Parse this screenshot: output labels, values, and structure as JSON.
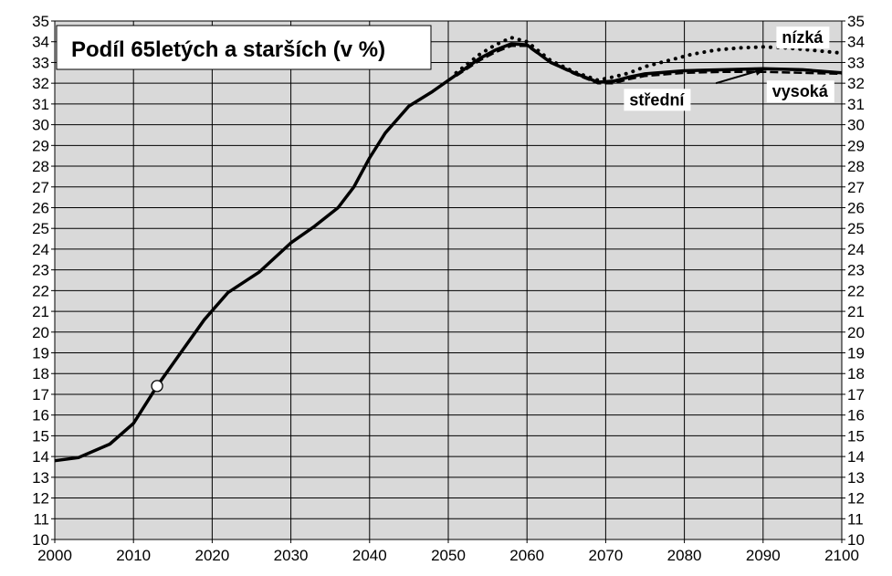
{
  "chart_data": {
    "type": "line",
    "title": "Podíl 65letých a starších (v %)",
    "xlabel": "",
    "ylabel": "",
    "xlim": [
      2000,
      2100
    ],
    "ylim": [
      10,
      35
    ],
    "x_ticks": [
      2000,
      2010,
      2020,
      2030,
      2040,
      2050,
      2060,
      2070,
      2080,
      2090,
      2100
    ],
    "y_ticks": [
      10,
      11,
      12,
      13,
      14,
      15,
      16,
      17,
      18,
      19,
      20,
      21,
      22,
      23,
      24,
      25,
      26,
      27,
      28,
      29,
      30,
      31,
      32,
      33,
      34,
      35
    ],
    "grid": true,
    "plot_background": "#d9d9d9",
    "line_color": "#000000",
    "series": [
      {
        "name": "střední",
        "style": "solid",
        "x": [
          2000,
          2003,
          2007,
          2010,
          2013,
          2016,
          2019,
          2022,
          2026,
          2030,
          2033,
          2036,
          2038,
          2040,
          2042,
          2045,
          2048,
          2051,
          2054,
          2056,
          2058,
          2060,
          2063,
          2066,
          2069,
          2071,
          2073,
          2075,
          2080,
          2085,
          2090,
          2095,
          2100
        ],
        "y": [
          13.8,
          13.95,
          14.6,
          15.6,
          17.4,
          19.0,
          20.6,
          21.9,
          22.9,
          24.3,
          25.1,
          26.0,
          27.0,
          28.4,
          29.6,
          30.9,
          31.6,
          32.4,
          33.2,
          33.6,
          33.9,
          33.85,
          33.0,
          32.5,
          32.05,
          32.1,
          32.3,
          32.45,
          32.6,
          32.65,
          32.7,
          32.65,
          32.5
        ]
      },
      {
        "name": "nízká",
        "style": "dotted",
        "x": [
          2051,
          2054,
          2056,
          2058,
          2060,
          2063,
          2066,
          2069,
          2071,
          2073,
          2075,
          2078,
          2081,
          2084,
          2087,
          2090,
          2093,
          2096,
          2100
        ],
        "y": [
          32.5,
          33.4,
          33.85,
          34.2,
          34.0,
          33.1,
          32.55,
          32.15,
          32.3,
          32.5,
          32.8,
          33.1,
          33.4,
          33.6,
          33.7,
          33.75,
          33.7,
          33.6,
          33.45
        ]
      },
      {
        "name": "vysoká",
        "style": "dashed",
        "x": [
          2051,
          2054,
          2056,
          2058,
          2060,
          2063,
          2066,
          2069,
          2071,
          2073,
          2075,
          2080,
          2085,
          2090,
          2095,
          2100
        ],
        "y": [
          32.35,
          33.1,
          33.5,
          33.8,
          33.8,
          33.0,
          32.45,
          32.0,
          32.0,
          32.2,
          32.35,
          32.5,
          32.55,
          32.55,
          32.5,
          32.45
        ]
      }
    ],
    "marker": {
      "x": 2013,
      "y": 17.4
    },
    "annotations": [
      {
        "text": "nízká",
        "x": 2095,
        "y": 34.2
      },
      {
        "text": "střední",
        "x": 2076.5,
        "y": 31.2
      },
      {
        "text": "vysoká",
        "x": 2094.7,
        "y": 31.6
      }
    ],
    "arrow": {
      "from": [
        2084,
        32.0
      ],
      "to": [
        2090.3,
        32.7
      ]
    }
  }
}
